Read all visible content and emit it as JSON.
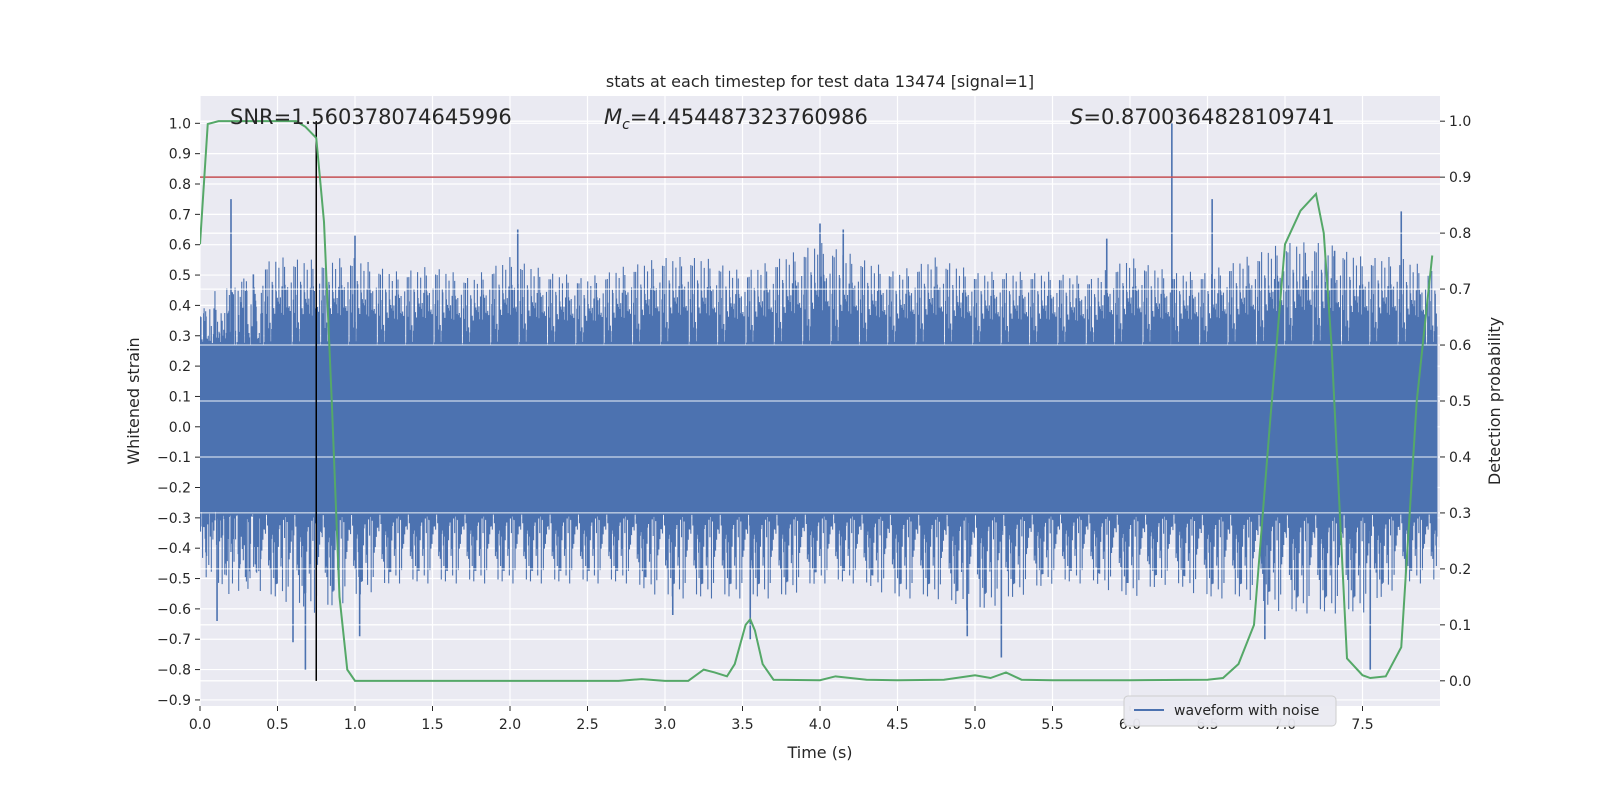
{
  "chart_data": {
    "type": "line",
    "title": "stats at each timestep for test data 13474 [signal=1]",
    "xlabel": "Time (s)",
    "ylabel": "Whitened strain",
    "ylabel_right": "Detection probability",
    "xlim": [
      0.0,
      8.0
    ],
    "ylim": [
      -0.92,
      1.09
    ],
    "ylim_right": [
      -0.045,
      1.045
    ],
    "x_ticks": [
      "0.0",
      "0.5",
      "1.0",
      "1.5",
      "2.0",
      "2.5",
      "3.0",
      "3.5",
      "4.0",
      "4.5",
      "5.0",
      "5.5",
      "6.0",
      "6.5",
      "7.0",
      "7.5"
    ],
    "y_ticks": [
      "1.0",
      "0.9",
      "0.8",
      "0.7",
      "0.6",
      "0.5",
      "0.4",
      "0.3",
      "0.2",
      "0.1",
      "0.0",
      "−0.1",
      "−0.2",
      "−0.3",
      "−0.4",
      "−0.5",
      "−0.6",
      "−0.7",
      "−0.8",
      "−0.9"
    ],
    "y_ticks_right": [
      "1.0",
      "0.9",
      "0.8",
      "0.7",
      "0.6",
      "0.5",
      "0.4",
      "0.3",
      "0.2",
      "0.1",
      "0.0"
    ],
    "grid": true,
    "legend_position": "bottom-right",
    "annotations": {
      "snr": "SNR=1.560378074645996",
      "mc_symbol": "M",
      "mc_sub": "c",
      "mc_value": "=4.454487323760986",
      "s_symbol": "S",
      "s_value": "=0.8700364828109741"
    },
    "threshold_right": 0.9,
    "marker_time": 0.75,
    "colors": {
      "waveform": "#4c72b0",
      "probability": "#55a868",
      "threshold": "#c44e52",
      "marker": "#000000",
      "background": "#eaeaf2",
      "grid": "#ffffff"
    },
    "series": [
      {
        "name": "waveform with noise",
        "envelope_x": [
          0.0,
          0.25,
          0.5,
          0.75,
          1.0,
          1.25,
          1.5,
          1.75,
          2.0,
          2.25,
          2.5,
          2.75,
          3.0,
          3.25,
          3.5,
          3.75,
          4.0,
          4.25,
          4.5,
          4.75,
          5.0,
          5.25,
          5.5,
          5.75,
          6.0,
          6.25,
          6.5,
          6.75,
          7.0,
          7.25,
          7.5,
          7.75,
          7.98
        ],
        "envelope_upper": [
          0.42,
          0.5,
          0.55,
          0.54,
          0.55,
          0.5,
          0.52,
          0.48,
          0.55,
          0.5,
          0.48,
          0.52,
          0.55,
          0.55,
          0.5,
          0.55,
          0.6,
          0.55,
          0.5,
          0.55,
          0.5,
          0.5,
          0.5,
          0.48,
          0.55,
          0.5,
          0.5,
          0.55,
          0.6,
          0.6,
          0.55,
          0.55,
          0.5
        ],
        "envelope_lower": [
          -0.5,
          -0.55,
          -0.55,
          -0.6,
          -0.55,
          -0.5,
          -0.5,
          -0.5,
          -0.5,
          -0.5,
          -0.5,
          -0.5,
          -0.55,
          -0.55,
          -0.55,
          -0.55,
          -0.5,
          -0.5,
          -0.55,
          -0.55,
          -0.6,
          -0.55,
          -0.5,
          -0.5,
          -0.55,
          -0.5,
          -0.55,
          -0.55,
          -0.6,
          -0.6,
          -0.6,
          -0.5,
          -0.5
        ],
        "peaks": [
          {
            "x": 0.2,
            "y": 0.75
          },
          {
            "x": 0.68,
            "y": -0.8
          },
          {
            "x": 0.6,
            "y": -0.71
          },
          {
            "x": 0.11,
            "y": -0.64
          },
          {
            "x": 1.0,
            "y": 0.63
          },
          {
            "x": 1.03,
            "y": -0.69
          },
          {
            "x": 2.05,
            "y": 0.65
          },
          {
            "x": 3.05,
            "y": -0.62
          },
          {
            "x": 3.55,
            "y": -0.7
          },
          {
            "x": 4.15,
            "y": 0.65
          },
          {
            "x": 4.0,
            "y": 0.67
          },
          {
            "x": 5.17,
            "y": -0.76
          },
          {
            "x": 4.95,
            "y": -0.69
          },
          {
            "x": 6.27,
            "y": 1.0
          },
          {
            "x": 6.53,
            "y": 0.75
          },
          {
            "x": 6.87,
            "y": -0.7
          },
          {
            "x": 7.55,
            "y": -0.8
          },
          {
            "x": 7.75,
            "y": 0.71
          },
          {
            "x": 7.32,
            "y": 0.58
          },
          {
            "x": 5.85,
            "y": 0.62
          }
        ]
      },
      {
        "name": "",
        "axis": "right",
        "x": [
          0.0,
          0.05,
          0.12,
          0.3,
          0.5,
          0.62,
          0.68,
          0.75,
          0.8,
          0.85,
          0.9,
          0.95,
          1.0,
          1.5,
          2.0,
          2.5,
          2.7,
          2.85,
          3.0,
          3.15,
          3.25,
          3.32,
          3.4,
          3.45,
          3.52,
          3.55,
          3.58,
          3.63,
          3.7,
          4.0,
          4.1,
          4.3,
          4.5,
          4.8,
          5.0,
          5.1,
          5.2,
          5.3,
          5.5,
          6.0,
          6.5,
          6.6,
          6.7,
          6.8,
          6.9,
          7.0,
          7.1,
          7.2,
          7.25,
          7.3,
          7.4,
          7.5,
          7.55,
          7.65,
          7.75,
          7.85,
          7.95
        ],
        "y": [
          0.78,
          0.995,
          1.0,
          1.0,
          1.0,
          1.0,
          0.99,
          0.97,
          0.82,
          0.5,
          0.15,
          0.02,
          0.0,
          0.0,
          0.0,
          0.0,
          0.0,
          0.003,
          0.0,
          0.0,
          0.02,
          0.015,
          0.008,
          0.03,
          0.1,
          0.11,
          0.09,
          0.03,
          0.002,
          0.001,
          0.008,
          0.002,
          0.001,
          0.002,
          0.01,
          0.005,
          0.015,
          0.002,
          0.001,
          0.001,
          0.002,
          0.005,
          0.03,
          0.1,
          0.45,
          0.78,
          0.84,
          0.87,
          0.8,
          0.6,
          0.04,
          0.01,
          0.005,
          0.008,
          0.06,
          0.5,
          0.76
        ]
      }
    ]
  }
}
